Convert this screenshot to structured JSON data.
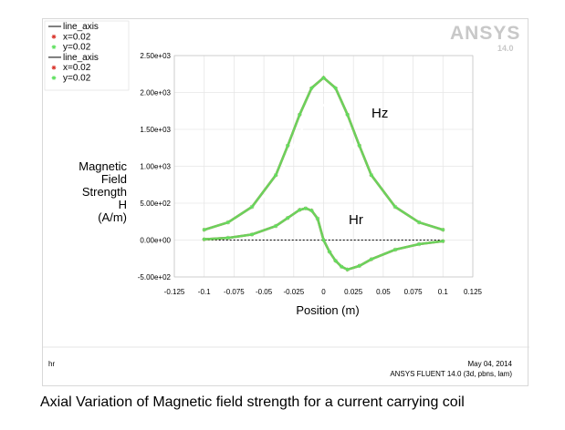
{
  "caption": "Axial Variation of Magnetic field strength for a current carrying coil",
  "logo": {
    "brand": "ANSYS",
    "version": "14.0"
  },
  "footer": {
    "left": "hr",
    "date": "May 04, 2014",
    "product": "ANSYS FLUENT 14.0 (3d, pbns, lam)"
  },
  "annotations": {
    "hz": "Hz",
    "hr": "Hr"
  },
  "colors": {
    "grid": "#e6e6e6",
    "line_axis": "#000000",
    "x_marker": "#d9342b",
    "y_marker": "#5fe05f",
    "hz_axis_line": "#ffffff",
    "logo": "#c8c8c8"
  },
  "chart_data": {
    "type": "scatter",
    "xlabel": "Position (m)",
    "ylabel_lines": [
      "Magnetic",
      "Field",
      "Strength",
      "H",
      "(A/m)"
    ],
    "xlim": [
      -0.125,
      0.125
    ],
    "ylim": [
      -500,
      2500
    ],
    "x_ticks": [
      -0.125,
      -0.1,
      -0.075,
      -0.05,
      -0.025,
      0,
      0.025,
      0.05,
      0.075,
      0.1,
      0.125
    ],
    "x_tick_labels": [
      "-0.125",
      "-0.1",
      "-0.075",
      "-0.05",
      "-0.025",
      "0",
      "0.025",
      "0.05",
      "0.075",
      "0.1",
      "0.125"
    ],
    "y_ticks": [
      -500,
      0,
      500,
      1000,
      1500,
      2000,
      2500
    ],
    "y_tick_labels": [
      "-5.00e+02",
      "0.00e+00",
      "5.00e+02",
      "1.00e+03",
      "1.50e+03",
      "2.00e+03",
      "2.50e+03"
    ],
    "grid": true,
    "legend_position": "top-left",
    "legend": [
      {
        "label": "line_axis",
        "marker": "line",
        "color": "#000000"
      },
      {
        "label": "x=0.02",
        "marker": "star",
        "color": "#d9342b"
      },
      {
        "label": "y=0.02",
        "marker": "star",
        "color": "#5fe05f"
      },
      {
        "label": "line_axis",
        "marker": "line",
        "color": "#000000"
      },
      {
        "label": "x=0.02",
        "marker": "star",
        "color": "#d9342b"
      },
      {
        "label": "y=0.02",
        "marker": "star",
        "color": "#5fe05f"
      }
    ],
    "series": [
      {
        "name": "line_axis",
        "quantity": "Hz",
        "color": "#ffffff",
        "x": [
          -0.1,
          -0.08,
          -0.06,
          -0.04,
          -0.03,
          -0.02,
          -0.01,
          0,
          0.01,
          0.02,
          0.03,
          0.04,
          0.06,
          0.08,
          0.1
        ],
        "y": [
          130,
          220,
          400,
          780,
          1100,
          1450,
          1720,
          1830,
          1720,
          1450,
          1100,
          780,
          400,
          220,
          130
        ]
      },
      {
        "name": "x=0.02",
        "quantity": "Hz",
        "color": "#d9342b",
        "x": [
          -0.1,
          -0.08,
          -0.06,
          -0.04,
          -0.03,
          -0.02,
          -0.01,
          0,
          0.01,
          0.02,
          0.03,
          0.04,
          0.06,
          0.08,
          0.1
        ],
        "y": [
          140,
          240,
          450,
          880,
          1280,
          1700,
          2060,
          2200,
          2060,
          1700,
          1280,
          880,
          450,
          240,
          140
        ]
      },
      {
        "name": "y=0.02",
        "quantity": "Hz",
        "color": "#5fe05f",
        "x": [
          -0.1,
          -0.08,
          -0.06,
          -0.04,
          -0.03,
          -0.02,
          -0.01,
          0,
          0.01,
          0.02,
          0.03,
          0.04,
          0.06,
          0.08,
          0.1
        ],
        "y": [
          140,
          240,
          450,
          880,
          1280,
          1700,
          2060,
          2200,
          2060,
          1700,
          1280,
          880,
          450,
          240,
          140
        ]
      },
      {
        "name": "line_axis",
        "quantity": "Hr",
        "color": "#000000",
        "x": [
          -0.1,
          -0.05,
          0,
          0.05,
          0.1
        ],
        "y": [
          0,
          0,
          0,
          0,
          0
        ]
      },
      {
        "name": "x=0.02",
        "quantity": "Hr",
        "color": "#d9342b",
        "x": [
          -0.1,
          -0.08,
          -0.06,
          -0.04,
          -0.03,
          -0.02,
          -0.015,
          -0.01,
          -0.005,
          0,
          0.005,
          0.01,
          0.015,
          0.02,
          0.03,
          0.04,
          0.06,
          0.08,
          0.1
        ],
        "y": [
          10,
          30,
          75,
          190,
          300,
          410,
          430,
          400,
          290,
          0,
          -160,
          -280,
          -360,
          -400,
          -350,
          -260,
          -130,
          -55,
          -15
        ]
      },
      {
        "name": "y=0.02",
        "quantity": "Hr",
        "color": "#5fe05f",
        "x": [
          -0.1,
          -0.08,
          -0.06,
          -0.04,
          -0.03,
          -0.02,
          -0.015,
          -0.01,
          -0.005,
          0,
          0.005,
          0.01,
          0.015,
          0.02,
          0.03,
          0.04,
          0.06,
          0.08,
          0.1
        ],
        "y": [
          10,
          30,
          75,
          190,
          300,
          410,
          430,
          400,
          290,
          0,
          -160,
          -280,
          -360,
          -400,
          -350,
          -260,
          -130,
          -55,
          -15
        ]
      }
    ]
  }
}
